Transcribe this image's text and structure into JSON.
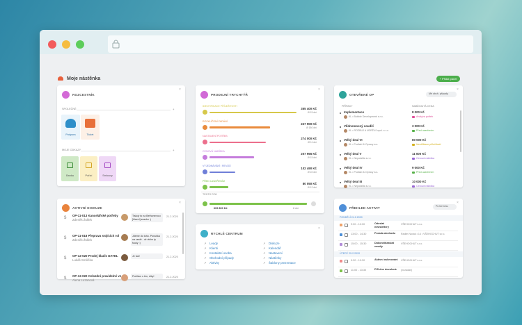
{
  "header": {
    "title": "Moje nástěnka",
    "add_button": "Přidat panel"
  },
  "rozcestnik": {
    "title": "ROZCESTNÍK",
    "shared_label": "SPOLEČNÉ",
    "shared": [
      "Podpora",
      "Ticket"
    ],
    "mine_label": "MOJE ODKAZY",
    "mine": [
      "Banka",
      "Pořízí",
      "Smlouvy"
    ]
  },
  "discussions": {
    "title": "AKTIVNÍ DISKUZE",
    "items": [
      {
        "title": "OP-11-013 Kancelářské potřeby",
        "person": "Zdeněk Žrálek",
        "message": "Tiskoý to na Bethonerovu [hlavní] svazku :)",
        "date": "21.2.2020"
      },
      {
        "title": "OP-11-018 Přeprava stojících rol",
        "person": "Zdeněk Žrálek",
        "message": "Jdeme do toho. Ponuška na cestě - už vidím ty fouky :)",
        "date": "21.2.2020"
      },
      {
        "title": "OP-12-020 Prodej kladiv DATEL",
        "person": "Lukáš Smilička",
        "message": "Je tak!",
        "date": "21.2.2020"
      },
      {
        "title": "OP-12-022 Celozdní pravidelné vz",
        "person": "Alena Luzanová",
        "message": "Počítám s tím, díky!",
        "date": "21.2.2020"
      }
    ]
  },
  "funnel": {
    "title": "PRODEJNÍ TRYCHTÝŘ",
    "stages": [
      {
        "name": "IDENTIFIKACE PŘÍLEŽITOSTI",
        "value": "355 400 Kč",
        "days": "Ø 15 dní"
      },
      {
        "name": "ROZKLÍČENÍ ZADÁNÍ",
        "value": "227 900 Kč",
        "days": "Ø 180 dní"
      },
      {
        "name": "NASTAVENÍ POTŘEB",
        "value": "274 000 Kč",
        "days": "Ø 11 dní"
      },
      {
        "name": "CENOVÁ NABÍDKA",
        "value": "207 955 Kč",
        "days": "Ø 15 dní"
      },
      {
        "name": "VYJEDNÁVÁNÍ / REVIZE",
        "value": "102 490 Kč",
        "days": "Ø 22 dní"
      },
      {
        "name": "PŘED UZAVŘENÍM",
        "value": "80 050 Kč",
        "days": "Ø 12 dní"
      }
    ],
    "total_label": "TENTO ROK",
    "total_value": "609 800 Kč",
    "total_days": "8 dní"
  },
  "quick_center": {
    "title": "RYCHLÉ CENTRUM",
    "links_left": [
      "Leady",
      "Klienti",
      "Kontaktní osoba",
      "Obchodní případy",
      "Aktivity"
    ],
    "links_right": [
      "Diskuze",
      "Kalendář",
      "Nastavení",
      "Nástěnky",
      "Šablony prezentace"
    ]
  },
  "open_op": {
    "title": "OTEVŘENÉ OP",
    "filter": "Mé obch. případy",
    "col_case": "PŘÍPADY",
    "col_price": "NABÍDNUTÁ CENA",
    "rows": [
      {
        "name": "Implementace",
        "client": "KL • Bubble Development s.r.o.",
        "price": "8 000 Kč",
        "stage": "Analýza potřeb"
      },
      {
        "name": "Vlídnomocný soudží",
        "client": "KL • ROZBUJ A UDRŽUJ spol. s r.o.",
        "price": "3 000 Kč",
        "stage": "Před uzavřením"
      },
      {
        "name": "Velký deal VI",
        "client": "KL • Podlaží & Opravy a.s.",
        "price": "80 000 Kč",
        "stage": "Identifikace příležitostí"
      },
      {
        "name": "Velký deal V",
        "client": "KL • Nepotalita s.r.o.",
        "price": "11 000 Kč",
        "stage": "Cenová nabídka"
      },
      {
        "name": "Velký deal IV",
        "client": "KL • Podlaží & Opravy a.s.",
        "price": "9 000 Kč",
        "stage": "Před uzavřením"
      },
      {
        "name": "Velký deal III",
        "client": "KL • Nepotalita s.r.o.",
        "price": "10 000 Kč",
        "stage": "Cenová nabídka"
      }
    ]
  },
  "activities": {
    "title": "PŘEHLED AKTIVIT",
    "filter": "Po termínu",
    "groups": [
      {
        "date": "PONDĚLÍ 24.2.2020",
        "items": [
          {
            "time": "9:30 - 12:30",
            "name": "Odeslat newslettery",
            "company": "VŠEHOCHUT s.r.o."
          },
          {
            "time": "13:00 - 14:30",
            "name": "Porada obchodu",
            "company": "Radim Novák • 14 • VŠEHOCHUT s.r.o."
          },
          {
            "time": "15:00 - 15:30",
            "name": "Dokončit/zaslat emaily",
            "company": "VŠEHOCHUT s.r.o."
          }
        ]
      },
      {
        "date": "ÚTERÝ 25.2.2020",
        "items": [
          {
            "time": "9:30 - 10:30",
            "name": "Aktivní oslovování",
            "company": "VŠEHOCHUT s.r.o."
          },
          {
            "time": "11:00 - 13:30",
            "name": "PIS dne dovolená",
            "company": "(nezadán)"
          }
        ]
      }
    ]
  }
}
